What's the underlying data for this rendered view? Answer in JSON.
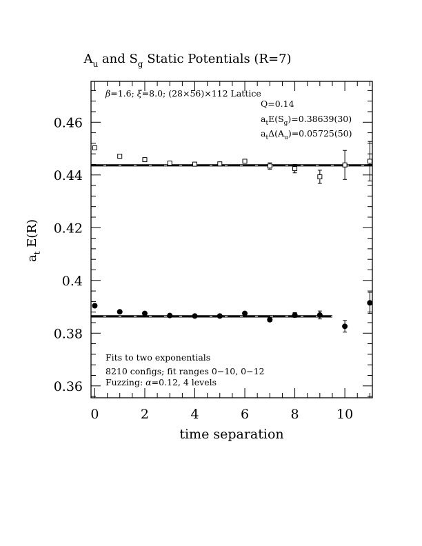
{
  "chart_data": {
    "type": "scatter",
    "title": {
      "prefix": "A",
      "sub1": "u",
      "mid": " and S",
      "sub2": "g",
      "suffix": " Static Potentials (R=7)"
    },
    "xlabel": "time separation",
    "ylabel": {
      "main": "a",
      "sub": "t",
      "rest": " E(R)"
    },
    "xlim": [
      -0.15,
      11.1
    ],
    "ylim": [
      0.3555,
      0.4755
    ],
    "xticks": [
      0,
      2,
      4,
      6,
      8,
      10
    ],
    "xtick_labels": [
      "0",
      "2",
      "4",
      "6",
      "8",
      "10"
    ],
    "yticks": [
      0.36,
      0.38,
      0.4,
      0.42,
      0.44,
      0.46
    ],
    "ytick_labels": [
      "0.36",
      "0.38",
      "0.4",
      "0.42",
      "0.44",
      "0.46"
    ],
    "x_minor_step": 0.5,
    "y_minor_step": 0.004,
    "grid": false,
    "series": [
      {
        "marker": "open-square",
        "x": [
          0,
          1,
          2,
          3,
          4,
          5,
          6,
          7,
          8,
          9,
          10,
          11
        ],
        "y": [
          0.4503,
          0.4471,
          0.4458,
          0.4445,
          0.4441,
          0.4442,
          0.4452,
          0.4434,
          0.4424,
          0.4393,
          0.4438,
          0.4452
        ],
        "err": [
          0.0005,
          0.0005,
          0.0005,
          0.0006,
          0.0006,
          0.0006,
          0.0007,
          0.0012,
          0.0016,
          0.0025,
          0.0055,
          0.0075
        ]
      },
      {
        "marker": "filled-circle",
        "x": [
          0,
          1,
          2,
          3,
          4,
          5,
          6,
          7,
          8,
          9,
          10,
          11
        ],
        "y": [
          0.3904,
          0.3881,
          0.3875,
          0.3867,
          0.3865,
          0.3865,
          0.3875,
          0.3851,
          0.3869,
          0.3869,
          0.3826,
          0.3915
        ],
        "err": [
          0.0005,
          0.0005,
          0.0005,
          0.0005,
          0.0005,
          0.0006,
          0.0006,
          0.0007,
          0.0009,
          0.0015,
          0.0022,
          0.004
        ]
      }
    ],
    "fit_bands": [
      {
        "central": 0.44364,
        "upper": 0.44392,
        "lower": 0.44336,
        "x_range": [
          -0.15,
          11.1
        ]
      },
      {
        "central": 0.38639,
        "upper": 0.38669,
        "lower": 0.38609,
        "x_range": [
          -0.15,
          9.5
        ]
      }
    ],
    "annotations": {
      "lattice": {
        "beta": "β",
        "text1": "=1.6; ",
        "xi": "ξ",
        "text2": "=8.0; (28×56)×112 Lattice"
      },
      "q": "Q=0.14",
      "es": {
        "a": "a",
        "t": "t",
        "mid": "E(S",
        "sub": "g",
        "val": ")=0.38639(30)"
      },
      "delta": {
        "a": "a",
        "t": "t",
        "mid": "Δ(A",
        "sub": "u",
        "val": ")=0.05725(50)"
      },
      "fits": "Fits to two exponentials",
      "configs": "8210 configs; fit ranges 0−10, 0−12",
      "fuzzing": {
        "pre": "Fuzzing: ",
        "alpha": "α",
        "post": "=0.12, 4 levels"
      }
    }
  }
}
